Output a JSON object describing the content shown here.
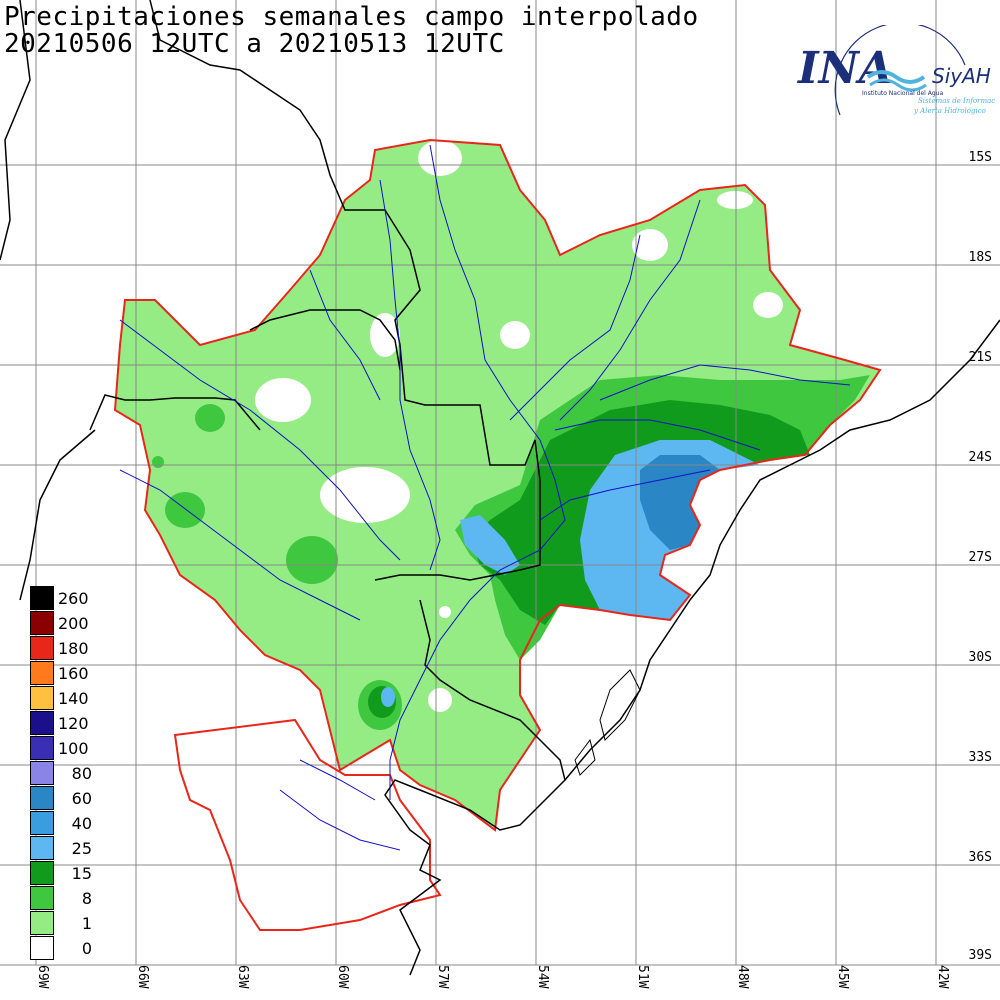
{
  "title": {
    "line1": "Precipitaciones semanales campo interpolado",
    "line2": "20210506 12UTC a 20210513 12UTC"
  },
  "logo": {
    "acronym": "INA",
    "subtitle": "Instituto Nacional del Agua",
    "brand": "SiyAH",
    "tagline1": "Sistemas de Información",
    "tagline2": "y Alerta Hidrológico",
    "colors": {
      "navy": "#1b2f7a",
      "cyan": "#4fb3e0"
    }
  },
  "legend": {
    "units_colors": [
      {
        "label": "260",
        "color": "#000000"
      },
      {
        "label": "200",
        "color": "#8b0000"
      },
      {
        "label": "180",
        "color": "#e8261a"
      },
      {
        "label": "160",
        "color": "#ff7a1a"
      },
      {
        "label": "140",
        "color": "#ffc040"
      },
      {
        "label": "120",
        "color": "#1c0f8c"
      },
      {
        "label": "100",
        "color": "#3a2fb4"
      },
      {
        "label": "80",
        "color": "#8a84e6"
      },
      {
        "label": "60",
        "color": "#2b86c6"
      },
      {
        "label": "40",
        "color": "#3a9de0"
      },
      {
        "label": "25",
        "color": "#5db8f2"
      },
      {
        "label": "15",
        "color": "#119b1c"
      },
      {
        "label": "8",
        "color": "#3fc83f"
      },
      {
        "label": "1",
        "color": "#95ec85"
      },
      {
        "label": "0",
        "color": "#ffffff"
      }
    ]
  },
  "axes": {
    "latitudes": [
      "15S",
      "18S",
      "21S",
      "24S",
      "27S",
      "30S",
      "33S",
      "36S",
      "39S"
    ],
    "longitudes": [
      "69W",
      "66W",
      "63W",
      "60W",
      "57W",
      "54W",
      "51W",
      "48W",
      "45W",
      "42W"
    ]
  },
  "map_colors": {
    "basin_outline": "#e8261a",
    "rivers": "#1010c8",
    "borders": "#000000",
    "grid": "#888888"
  }
}
